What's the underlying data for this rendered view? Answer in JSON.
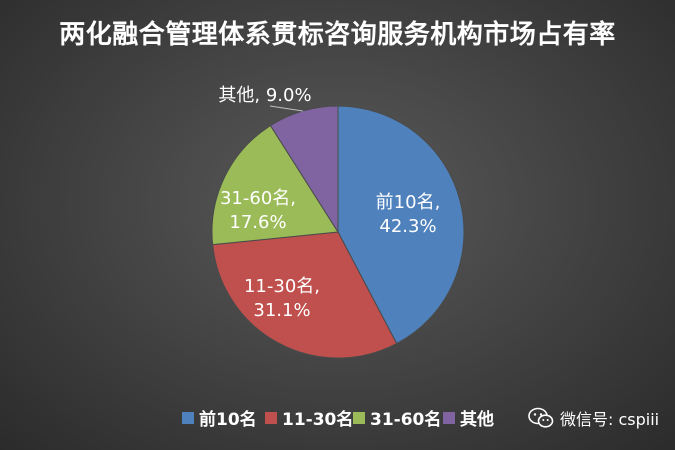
{
  "chart_data": {
    "type": "pie",
    "title": "两化融合管理体系贯标咨询服务机构市场占有率",
    "slices": [
      {
        "label": "前10名",
        "value": 42.3,
        "value_label": "42.3%",
        "color": "#4f81bd"
      },
      {
        "label": "11-30名",
        "value": 31.1,
        "value_label": "31.1%",
        "color": "#c0504d"
      },
      {
        "label": "31-60名",
        "value": 17.6,
        "value_label": "17.6%",
        "color": "#9bbb59"
      },
      {
        "label": "其他",
        "value": 9.0,
        "value_label": "9.0%",
        "color": "#8064a2"
      }
    ],
    "start_angle_deg": 0,
    "direction": "clockwise",
    "legend_position": "bottom"
  },
  "watermark": {
    "icon": "wechat-icon",
    "text": "微信号: cspiii"
  }
}
